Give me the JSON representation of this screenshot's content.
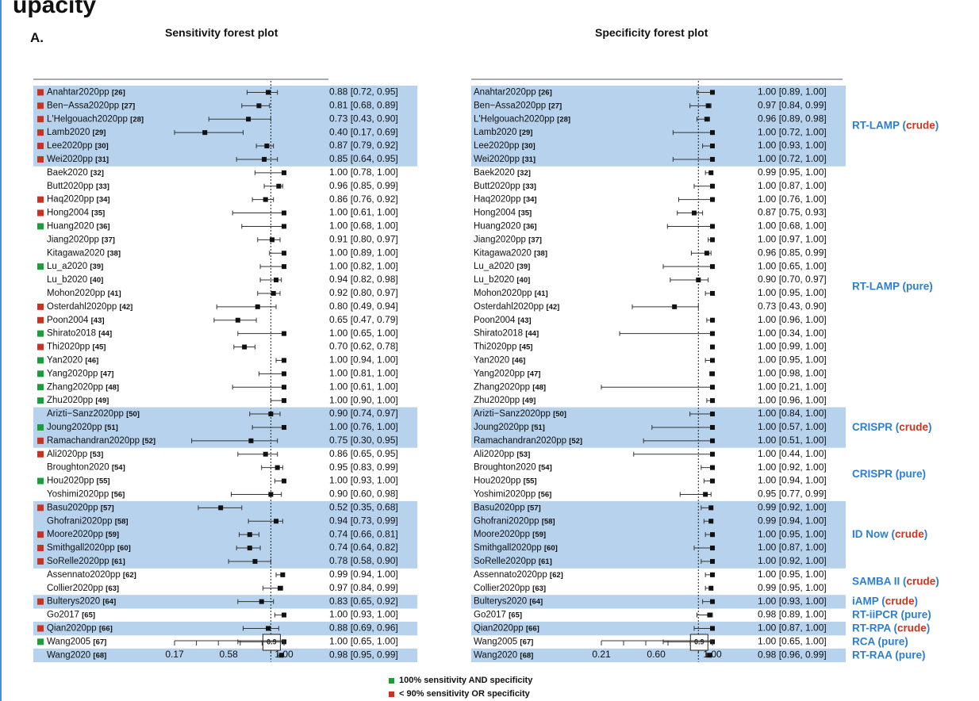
{
  "header": {
    "title": "upacity",
    "panel": "A."
  },
  "legend": {
    "green": "100% sensitivity AND specificity",
    "red": "< 90% sensitivity OR specificity"
  },
  "colors": {
    "band": "#b7d2ec",
    "green": "#1a9e3a",
    "red": "#c8321e",
    "label_blue": "#2a7fd4",
    "label_red": "#d0321e"
  },
  "studies": [
    {
      "name": "Anahtar2020pp",
      "ref": "[26]",
      "marker": "red",
      "band": true
    },
    {
      "name": "Ben−Assa2020pp",
      "ref": "[27]",
      "marker": "red",
      "band": true
    },
    {
      "name": "L'Helgouach2020pp",
      "ref": "[28]",
      "marker": "red",
      "band": true
    },
    {
      "name": "Lamb2020",
      "ref": "[29]",
      "marker": "red",
      "band": true
    },
    {
      "name": "Lee2020pp",
      "ref": "[30]",
      "marker": "red",
      "band": true
    },
    {
      "name": "Wei2020pp",
      "ref": "[31]",
      "marker": "red",
      "band": true
    },
    {
      "name": "Baek2020",
      "ref": "[32]",
      "marker": "",
      "band": false
    },
    {
      "name": "Butt2020pp",
      "ref": "[33]",
      "marker": "",
      "band": false
    },
    {
      "name": "Haq2020pp",
      "ref": "[34]",
      "marker": "red",
      "band": false
    },
    {
      "name": "Hong2004",
      "ref": "[35]",
      "marker": "red",
      "band": false
    },
    {
      "name": "Huang2020",
      "ref": "[36]",
      "marker": "green",
      "band": false
    },
    {
      "name": "Jiang2020pp",
      "ref": "[37]",
      "marker": "",
      "band": false
    },
    {
      "name": "Kitagawa2020",
      "ref": "[38]",
      "marker": "",
      "band": false
    },
    {
      "name": "Lu_a2020",
      "ref": "[39]",
      "marker": "green",
      "band": false
    },
    {
      "name": "Lu_b2020",
      "ref": "[40]",
      "marker": "",
      "band": false
    },
    {
      "name": "Mohon2020pp",
      "ref": "[41]",
      "marker": "",
      "band": false
    },
    {
      "name": "Osterdahl2020pp",
      "ref": "[42]",
      "marker": "red",
      "band": false
    },
    {
      "name": "Poon2004",
      "ref": "[43]",
      "marker": "red",
      "band": false
    },
    {
      "name": "Shirato2018",
      "ref": "[44]",
      "marker": "green",
      "band": false
    },
    {
      "name": "Thi2020pp",
      "ref": "[45]",
      "marker": "red",
      "band": false
    },
    {
      "name": "Yan2020",
      "ref": "[46]",
      "marker": "green",
      "band": false
    },
    {
      "name": "Yang2020pp",
      "ref": "[47]",
      "marker": "green",
      "band": false
    },
    {
      "name": "Zhang2020pp",
      "ref": "[48]",
      "marker": "green",
      "band": false
    },
    {
      "name": "Zhu2020pp",
      "ref": "[49]",
      "marker": "green",
      "band": false
    },
    {
      "name": "Arizti−Sanz2020pp",
      "ref": "[50]",
      "marker": "",
      "band": true
    },
    {
      "name": "Joung2020pp",
      "ref": "[51]",
      "marker": "green",
      "band": true
    },
    {
      "name": "Ramachandran2020pp",
      "ref": "[52]",
      "marker": "red",
      "band": true
    },
    {
      "name": "Ali2020pp",
      "ref": "[53]",
      "marker": "red",
      "band": false
    },
    {
      "name": "Broughton2020",
      "ref": "[54]",
      "marker": "",
      "band": false
    },
    {
      "name": "Hou2020pp",
      "ref": "[55]",
      "marker": "green",
      "band": false
    },
    {
      "name": "Yoshimi2020pp",
      "ref": "[56]",
      "marker": "",
      "band": false
    },
    {
      "name": "Basu2020pp",
      "ref": "[57]",
      "marker": "red",
      "band": true
    },
    {
      "name": "Ghofrani2020pp",
      "ref": "[58]",
      "marker": "",
      "band": true
    },
    {
      "name": "Moore2020pp",
      "ref": "[59]",
      "marker": "red",
      "band": true
    },
    {
      "name": "Smithgall2020pp",
      "ref": "[60]",
      "marker": "red",
      "band": true
    },
    {
      "name": "SoRelle2020pp",
      "ref": "[61]",
      "marker": "red",
      "band": true
    },
    {
      "name": "Assennato2020pp",
      "ref": "[62]",
      "marker": "",
      "band": false
    },
    {
      "name": "Collier2020pp",
      "ref": "[63]",
      "marker": "",
      "band": false
    },
    {
      "name": "Bulterys2020",
      "ref": "[64]",
      "marker": "red",
      "band": true
    },
    {
      "name": "Go2017",
      "ref": "[65]",
      "marker": "",
      "band": false
    },
    {
      "name": "Qian2020pp",
      "ref": "[66]",
      "marker": "red",
      "band": true
    },
    {
      "name": "Wang2005",
      "ref": "[67]",
      "marker": "green",
      "band": false
    },
    {
      "name": "Wang2020",
      "ref": "[68]",
      "marker": "",
      "band": true
    }
  ],
  "groups": [
    {
      "first": 0,
      "last": 5,
      "method": "RT-LAMP",
      "qual": "crude"
    },
    {
      "first": 6,
      "last": 23,
      "method": "RT-LAMP",
      "qual": "pure"
    },
    {
      "first": 24,
      "last": 26,
      "method": "CRISPR",
      "qual": "crude"
    },
    {
      "first": 27,
      "last": 30,
      "method": "CRISPR",
      "qual": "pure"
    },
    {
      "first": 31,
      "last": 35,
      "method": "ID Now",
      "qual": "crude"
    },
    {
      "first": 36,
      "last": 37,
      "method": "SAMBA II",
      "qual": "crude"
    },
    {
      "first": 38,
      "last": 38,
      "method": "iAMP",
      "qual": "crude"
    },
    {
      "first": 39,
      "last": 39,
      "method": "RT-iiPCR",
      "qual": "pure"
    },
    {
      "first": 40,
      "last": 40,
      "method": "RT-RPA",
      "qual": "crude"
    },
    {
      "first": 41,
      "last": 41,
      "method": "RCA",
      "qual": "pure"
    },
    {
      "first": 42,
      "last": 42,
      "method": "RT-RAA",
      "qual": "pure"
    }
  ],
  "chart_data": [
    {
      "type": "forest",
      "title": "Sensitivity forest plot",
      "ref_line": 0.9,
      "ref_label": "0.9",
      "ticks": [
        0.17,
        0.58,
        1.0
      ],
      "tick_labels": [
        "0.17",
        "0.58",
        "1.00"
      ],
      "xlim": [
        0.17,
        1.0
      ],
      "points": [
        {
          "est": 0.88,
          "lo": 0.72,
          "hi": 0.95,
          "text": "0.88 [0.72, 0.95]"
        },
        {
          "est": 0.81,
          "lo": 0.68,
          "hi": 0.89,
          "text": "0.81 [0.68, 0.89]"
        },
        {
          "est": 0.73,
          "lo": 0.43,
          "hi": 0.9,
          "text": "0.73 [0.43, 0.90]"
        },
        {
          "est": 0.4,
          "lo": 0.17,
          "hi": 0.69,
          "text": "0.40 [0.17, 0.69]"
        },
        {
          "est": 0.87,
          "lo": 0.79,
          "hi": 0.92,
          "text": "0.87 [0.79, 0.92]"
        },
        {
          "est": 0.85,
          "lo": 0.64,
          "hi": 0.95,
          "text": "0.85 [0.64, 0.95]"
        },
        {
          "est": 1.0,
          "lo": 0.78,
          "hi": 1.0,
          "text": "1.00 [0.78, 1.00]"
        },
        {
          "est": 0.96,
          "lo": 0.85,
          "hi": 0.99,
          "text": "0.96 [0.85, 0.99]"
        },
        {
          "est": 0.86,
          "lo": 0.76,
          "hi": 0.92,
          "text": "0.86 [0.76, 0.92]"
        },
        {
          "est": 1.0,
          "lo": 0.61,
          "hi": 1.0,
          "text": "1.00 [0.61, 1.00]"
        },
        {
          "est": 1.0,
          "lo": 0.68,
          "hi": 1.0,
          "text": "1.00 [0.68, 1.00]"
        },
        {
          "est": 0.91,
          "lo": 0.8,
          "hi": 0.97,
          "text": "0.91 [0.80, 0.97]"
        },
        {
          "est": 1.0,
          "lo": 0.89,
          "hi": 1.0,
          "text": "1.00 [0.89, 1.00]"
        },
        {
          "est": 1.0,
          "lo": 0.82,
          "hi": 1.0,
          "text": "1.00 [0.82, 1.00]"
        },
        {
          "est": 0.94,
          "lo": 0.82,
          "hi": 0.98,
          "text": "0.94 [0.82, 0.98]"
        },
        {
          "est": 0.92,
          "lo": 0.8,
          "hi": 0.97,
          "text": "0.92 [0.80, 0.97]"
        },
        {
          "est": 0.8,
          "lo": 0.49,
          "hi": 0.94,
          "text": "0.80 [0.49, 0.94]"
        },
        {
          "est": 0.65,
          "lo": 0.47,
          "hi": 0.79,
          "text": "0.65 [0.47, 0.79]"
        },
        {
          "est": 1.0,
          "lo": 0.65,
          "hi": 1.0,
          "text": "1.00 [0.65, 1.00]"
        },
        {
          "est": 0.7,
          "lo": 0.62,
          "hi": 0.78,
          "text": "0.70 [0.62, 0.78]"
        },
        {
          "est": 1.0,
          "lo": 0.94,
          "hi": 1.0,
          "text": "1.00 [0.94, 1.00]"
        },
        {
          "est": 1.0,
          "lo": 0.81,
          "hi": 1.0,
          "text": "1.00 [0.81, 1.00]"
        },
        {
          "est": 1.0,
          "lo": 0.61,
          "hi": 1.0,
          "text": "1.00 [0.61, 1.00]"
        },
        {
          "est": 1.0,
          "lo": 0.9,
          "hi": 1.0,
          "text": "1.00 [0.90, 1.00]"
        },
        {
          "est": 0.9,
          "lo": 0.74,
          "hi": 0.97,
          "text": "0.90 [0.74, 0.97]"
        },
        {
          "est": 1.0,
          "lo": 0.76,
          "hi": 1.0,
          "text": "1.00 [0.76, 1.00]"
        },
        {
          "est": 0.75,
          "lo": 0.3,
          "hi": 0.95,
          "text": "0.75 [0.30, 0.95]"
        },
        {
          "est": 0.86,
          "lo": 0.65,
          "hi": 0.95,
          "text": "0.86 [0.65, 0.95]"
        },
        {
          "est": 0.95,
          "lo": 0.83,
          "hi": 0.99,
          "text": "0.95 [0.83, 0.99]"
        },
        {
          "est": 1.0,
          "lo": 0.93,
          "hi": 1.0,
          "text": "1.00 [0.93, 1.00]"
        },
        {
          "est": 0.9,
          "lo": 0.6,
          "hi": 0.98,
          "text": "0.90 [0.60, 0.98]"
        },
        {
          "est": 0.52,
          "lo": 0.35,
          "hi": 0.68,
          "text": "0.52 [0.35, 0.68]"
        },
        {
          "est": 0.94,
          "lo": 0.73,
          "hi": 0.99,
          "text": "0.94 [0.73, 0.99]"
        },
        {
          "est": 0.74,
          "lo": 0.66,
          "hi": 0.81,
          "text": "0.74 [0.66, 0.81]"
        },
        {
          "est": 0.74,
          "lo": 0.64,
          "hi": 0.82,
          "text": "0.74 [0.64, 0.82]"
        },
        {
          "est": 0.78,
          "lo": 0.58,
          "hi": 0.9,
          "text": "0.78 [0.58, 0.90]"
        },
        {
          "est": 0.99,
          "lo": 0.94,
          "hi": 1.0,
          "text": "0.99 [0.94, 1.00]"
        },
        {
          "est": 0.97,
          "lo": 0.84,
          "hi": 0.99,
          "text": "0.97 [0.84, 0.99]"
        },
        {
          "est": 0.83,
          "lo": 0.65,
          "hi": 0.92,
          "text": "0.83 [0.65, 0.92]"
        },
        {
          "est": 1.0,
          "lo": 0.93,
          "hi": 1.0,
          "text": "1.00 [0.93, 1.00]"
        },
        {
          "est": 0.88,
          "lo": 0.69,
          "hi": 0.96,
          "text": "0.88 [0.69, 0.96]"
        },
        {
          "est": 1.0,
          "lo": 0.65,
          "hi": 1.0,
          "text": "1.00 [0.65, 1.00]"
        },
        {
          "est": 0.98,
          "lo": 0.95,
          "hi": 0.99,
          "text": "0.98 [0.95, 0.99]"
        }
      ]
    },
    {
      "type": "forest",
      "title": "Specificity forest plot",
      "ref_line": 0.9,
      "ref_label": "0.9",
      "ticks": [
        0.21,
        0.6,
        1.0
      ],
      "tick_labels": [
        "0.21",
        "0.60",
        "1.00"
      ],
      "xlim": [
        0.21,
        1.0
      ],
      "points": [
        {
          "est": 1.0,
          "lo": 0.89,
          "hi": 1.0,
          "text": "1.00 [0.89, 1.00]"
        },
        {
          "est": 0.97,
          "lo": 0.84,
          "hi": 0.99,
          "text": "0.97 [0.84, 0.99]"
        },
        {
          "est": 0.96,
          "lo": 0.89,
          "hi": 0.98,
          "text": "0.96 [0.89, 0.98]"
        },
        {
          "est": 1.0,
          "lo": 0.72,
          "hi": 1.0,
          "text": "1.00 [0.72, 1.00]"
        },
        {
          "est": 1.0,
          "lo": 0.93,
          "hi": 1.0,
          "text": "1.00 [0.93, 1.00]"
        },
        {
          "est": 1.0,
          "lo": 0.72,
          "hi": 1.0,
          "text": "1.00 [0.72, 1.00]"
        },
        {
          "est": 0.99,
          "lo": 0.95,
          "hi": 1.0,
          "text": "0.99 [0.95, 1.00]"
        },
        {
          "est": 1.0,
          "lo": 0.87,
          "hi": 1.0,
          "text": "1.00 [0.87, 1.00]"
        },
        {
          "est": 1.0,
          "lo": 0.76,
          "hi": 1.0,
          "text": "1.00 [0.76, 1.00]"
        },
        {
          "est": 0.87,
          "lo": 0.75,
          "hi": 0.93,
          "text": "0.87 [0.75, 0.93]"
        },
        {
          "est": 1.0,
          "lo": 0.68,
          "hi": 1.0,
          "text": "1.00 [0.68, 1.00]"
        },
        {
          "est": 1.0,
          "lo": 0.97,
          "hi": 1.0,
          "text": "1.00 [0.97, 1.00]"
        },
        {
          "est": 0.96,
          "lo": 0.85,
          "hi": 0.99,
          "text": "0.96 [0.85, 0.99]"
        },
        {
          "est": 1.0,
          "lo": 0.65,
          "hi": 1.0,
          "text": "1.00 [0.65, 1.00]"
        },
        {
          "est": 0.9,
          "lo": 0.7,
          "hi": 0.97,
          "text": "0.90 [0.70, 0.97]"
        },
        {
          "est": 1.0,
          "lo": 0.95,
          "hi": 1.0,
          "text": "1.00 [0.95, 1.00]"
        },
        {
          "est": 0.73,
          "lo": 0.43,
          "hi": 0.9,
          "text": "0.73 [0.43, 0.90]"
        },
        {
          "est": 1.0,
          "lo": 0.96,
          "hi": 1.0,
          "text": "1.00 [0.96, 1.00]"
        },
        {
          "est": 1.0,
          "lo": 0.34,
          "hi": 1.0,
          "text": "1.00 [0.34, 1.00]"
        },
        {
          "est": 1.0,
          "lo": 0.99,
          "hi": 1.0,
          "text": "1.00 [0.99, 1.00]"
        },
        {
          "est": 1.0,
          "lo": 0.95,
          "hi": 1.0,
          "text": "1.00 [0.95, 1.00]"
        },
        {
          "est": 1.0,
          "lo": 0.98,
          "hi": 1.0,
          "text": "1.00 [0.98, 1.00]"
        },
        {
          "est": 1.0,
          "lo": 0.21,
          "hi": 1.0,
          "text": "1.00 [0.21, 1.00]"
        },
        {
          "est": 1.0,
          "lo": 0.96,
          "hi": 1.0,
          "text": "1.00 [0.96, 1.00]"
        },
        {
          "est": 1.0,
          "lo": 0.84,
          "hi": 1.0,
          "text": "1.00 [0.84, 1.00]"
        },
        {
          "est": 1.0,
          "lo": 0.57,
          "hi": 1.0,
          "text": "1.00 [0.57, 1.00]"
        },
        {
          "est": 1.0,
          "lo": 0.51,
          "hi": 1.0,
          "text": "1.00 [0.51, 1.00]"
        },
        {
          "est": 1.0,
          "lo": 0.44,
          "hi": 1.0,
          "text": "1.00 [0.44, 1.00]"
        },
        {
          "est": 1.0,
          "lo": 0.92,
          "hi": 1.0,
          "text": "1.00 [0.92, 1.00]"
        },
        {
          "est": 1.0,
          "lo": 0.94,
          "hi": 1.0,
          "text": "1.00 [0.94, 1.00]"
        },
        {
          "est": 0.95,
          "lo": 0.77,
          "hi": 0.99,
          "text": "0.95 [0.77, 0.99]"
        },
        {
          "est": 0.99,
          "lo": 0.92,
          "hi": 1.0,
          "text": "0.99 [0.92, 1.00]"
        },
        {
          "est": 0.99,
          "lo": 0.94,
          "hi": 1.0,
          "text": "0.99 [0.94, 1.00]"
        },
        {
          "est": 1.0,
          "lo": 0.95,
          "hi": 1.0,
          "text": "1.00 [0.95, 1.00]"
        },
        {
          "est": 1.0,
          "lo": 0.87,
          "hi": 1.0,
          "text": "1.00 [0.87, 1.00]"
        },
        {
          "est": 1.0,
          "lo": 0.92,
          "hi": 1.0,
          "text": "1.00 [0.92, 1.00]"
        },
        {
          "est": 1.0,
          "lo": 0.95,
          "hi": 1.0,
          "text": "1.00 [0.95, 1.00]"
        },
        {
          "est": 0.99,
          "lo": 0.95,
          "hi": 1.0,
          "text": "0.99 [0.95, 1.00]"
        },
        {
          "est": 1.0,
          "lo": 0.93,
          "hi": 1.0,
          "text": "1.00 [0.93, 1.00]"
        },
        {
          "est": 0.98,
          "lo": 0.89,
          "hi": 1.0,
          "text": "0.98 [0.89, 1.00]"
        },
        {
          "est": 1.0,
          "lo": 0.87,
          "hi": 1.0,
          "text": "1.00 [0.87, 1.00]"
        },
        {
          "est": 1.0,
          "lo": 0.65,
          "hi": 1.0,
          "text": "1.00 [0.65, 1.00]"
        },
        {
          "est": 0.98,
          "lo": 0.96,
          "hi": 0.99,
          "text": "0.98 [0.96, 0.99]"
        }
      ]
    }
  ]
}
